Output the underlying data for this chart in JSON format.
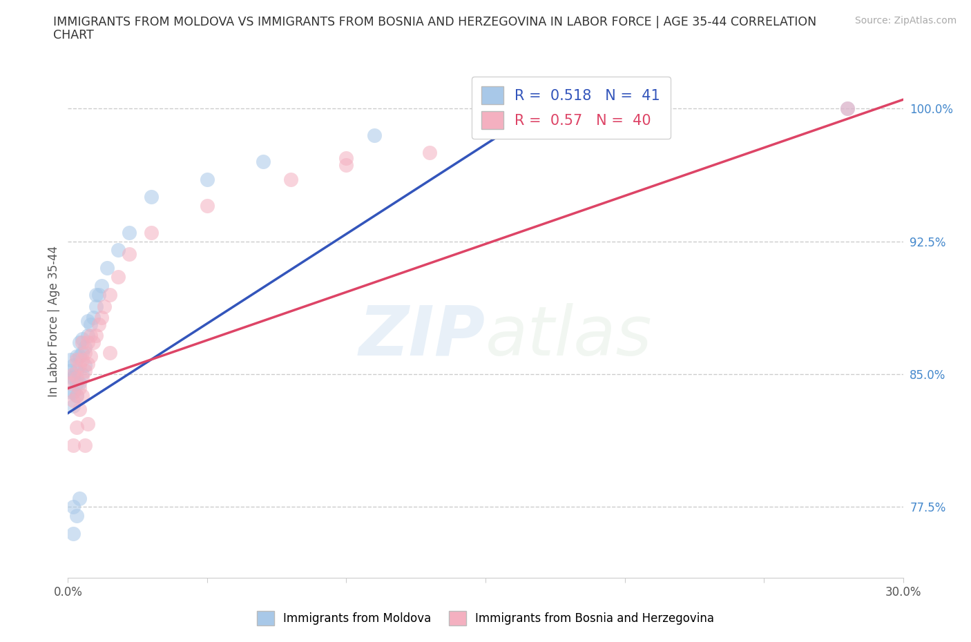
{
  "title": "IMMIGRANTS FROM MOLDOVA VS IMMIGRANTS FROM BOSNIA AND HERZEGOVINA IN LABOR FORCE | AGE 35-44 CORRELATION\nCHART",
  "source": "Source: ZipAtlas.com",
  "ylabel": "In Labor Force | Age 35-44",
  "xlim": [
    0.0,
    0.3
  ],
  "ylim": [
    0.735,
    1.025
  ],
  "xticks": [
    0.0,
    0.05,
    0.1,
    0.15,
    0.2,
    0.25,
    0.3
  ],
  "xtick_labels": [
    "0.0%",
    "",
    "",
    "",
    "",
    "",
    "30.0%"
  ],
  "ytick_labels_right": [
    "77.5%",
    "85.0%",
    "92.5%",
    "100.0%"
  ],
  "yticks_right": [
    0.775,
    0.85,
    0.925,
    1.0
  ],
  "moldova_color": "#a8c8e8",
  "bosnia_color": "#f4b0c0",
  "moldova_line_color": "#3355bb",
  "bosnia_line_color": "#dd4466",
  "R_moldova": 0.518,
  "N_moldova": 41,
  "R_bosnia": 0.57,
  "N_bosnia": 40,
  "moldova_line_x0": 0.0,
  "moldova_line_y0": 0.828,
  "moldova_line_x1": 0.175,
  "moldova_line_y1": 1.005,
  "bosnia_line_x0": 0.0,
  "bosnia_line_y0": 0.842,
  "bosnia_line_x1": 0.3,
  "bosnia_line_y1": 1.005,
  "moldova_x": [
    0.001,
    0.001,
    0.001,
    0.001,
    0.002,
    0.002,
    0.002,
    0.002,
    0.003,
    0.003,
    0.003,
    0.003,
    0.004,
    0.004,
    0.004,
    0.005,
    0.005,
    0.005,
    0.006,
    0.006,
    0.007,
    0.007,
    0.008,
    0.009,
    0.01,
    0.01,
    0.011,
    0.012,
    0.014,
    0.018,
    0.022,
    0.03,
    0.05,
    0.07,
    0.11,
    0.155,
    0.002,
    0.002,
    0.003,
    0.004,
    0.28
  ],
  "moldova_y": [
    0.84,
    0.848,
    0.852,
    0.858,
    0.832,
    0.84,
    0.848,
    0.855,
    0.838,
    0.845,
    0.852,
    0.86,
    0.845,
    0.86,
    0.868,
    0.85,
    0.862,
    0.87,
    0.855,
    0.865,
    0.872,
    0.88,
    0.878,
    0.882,
    0.888,
    0.895,
    0.895,
    0.9,
    0.91,
    0.92,
    0.93,
    0.95,
    0.96,
    0.97,
    0.985,
    1.0,
    0.76,
    0.775,
    0.77,
    0.78,
    1.0
  ],
  "bosnia_x": [
    0.001,
    0.002,
    0.002,
    0.003,
    0.003,
    0.003,
    0.004,
    0.004,
    0.005,
    0.005,
    0.005,
    0.006,
    0.006,
    0.007,
    0.007,
    0.008,
    0.008,
    0.009,
    0.01,
    0.011,
    0.012,
    0.013,
    0.015,
    0.018,
    0.022,
    0.03,
    0.05,
    0.08,
    0.1,
    0.13,
    0.18,
    0.28,
    0.002,
    0.003,
    0.004,
    0.005,
    0.006,
    0.007,
    0.015,
    0.1
  ],
  "bosnia_y": [
    0.845,
    0.835,
    0.85,
    0.838,
    0.848,
    0.858,
    0.842,
    0.855,
    0.848,
    0.858,
    0.868,
    0.852,
    0.862,
    0.856,
    0.868,
    0.86,
    0.872,
    0.868,
    0.872,
    0.878,
    0.882,
    0.888,
    0.895,
    0.905,
    0.918,
    0.93,
    0.945,
    0.96,
    0.968,
    0.975,
    0.988,
    1.0,
    0.81,
    0.82,
    0.83,
    0.838,
    0.81,
    0.822,
    0.862,
    0.972
  ]
}
